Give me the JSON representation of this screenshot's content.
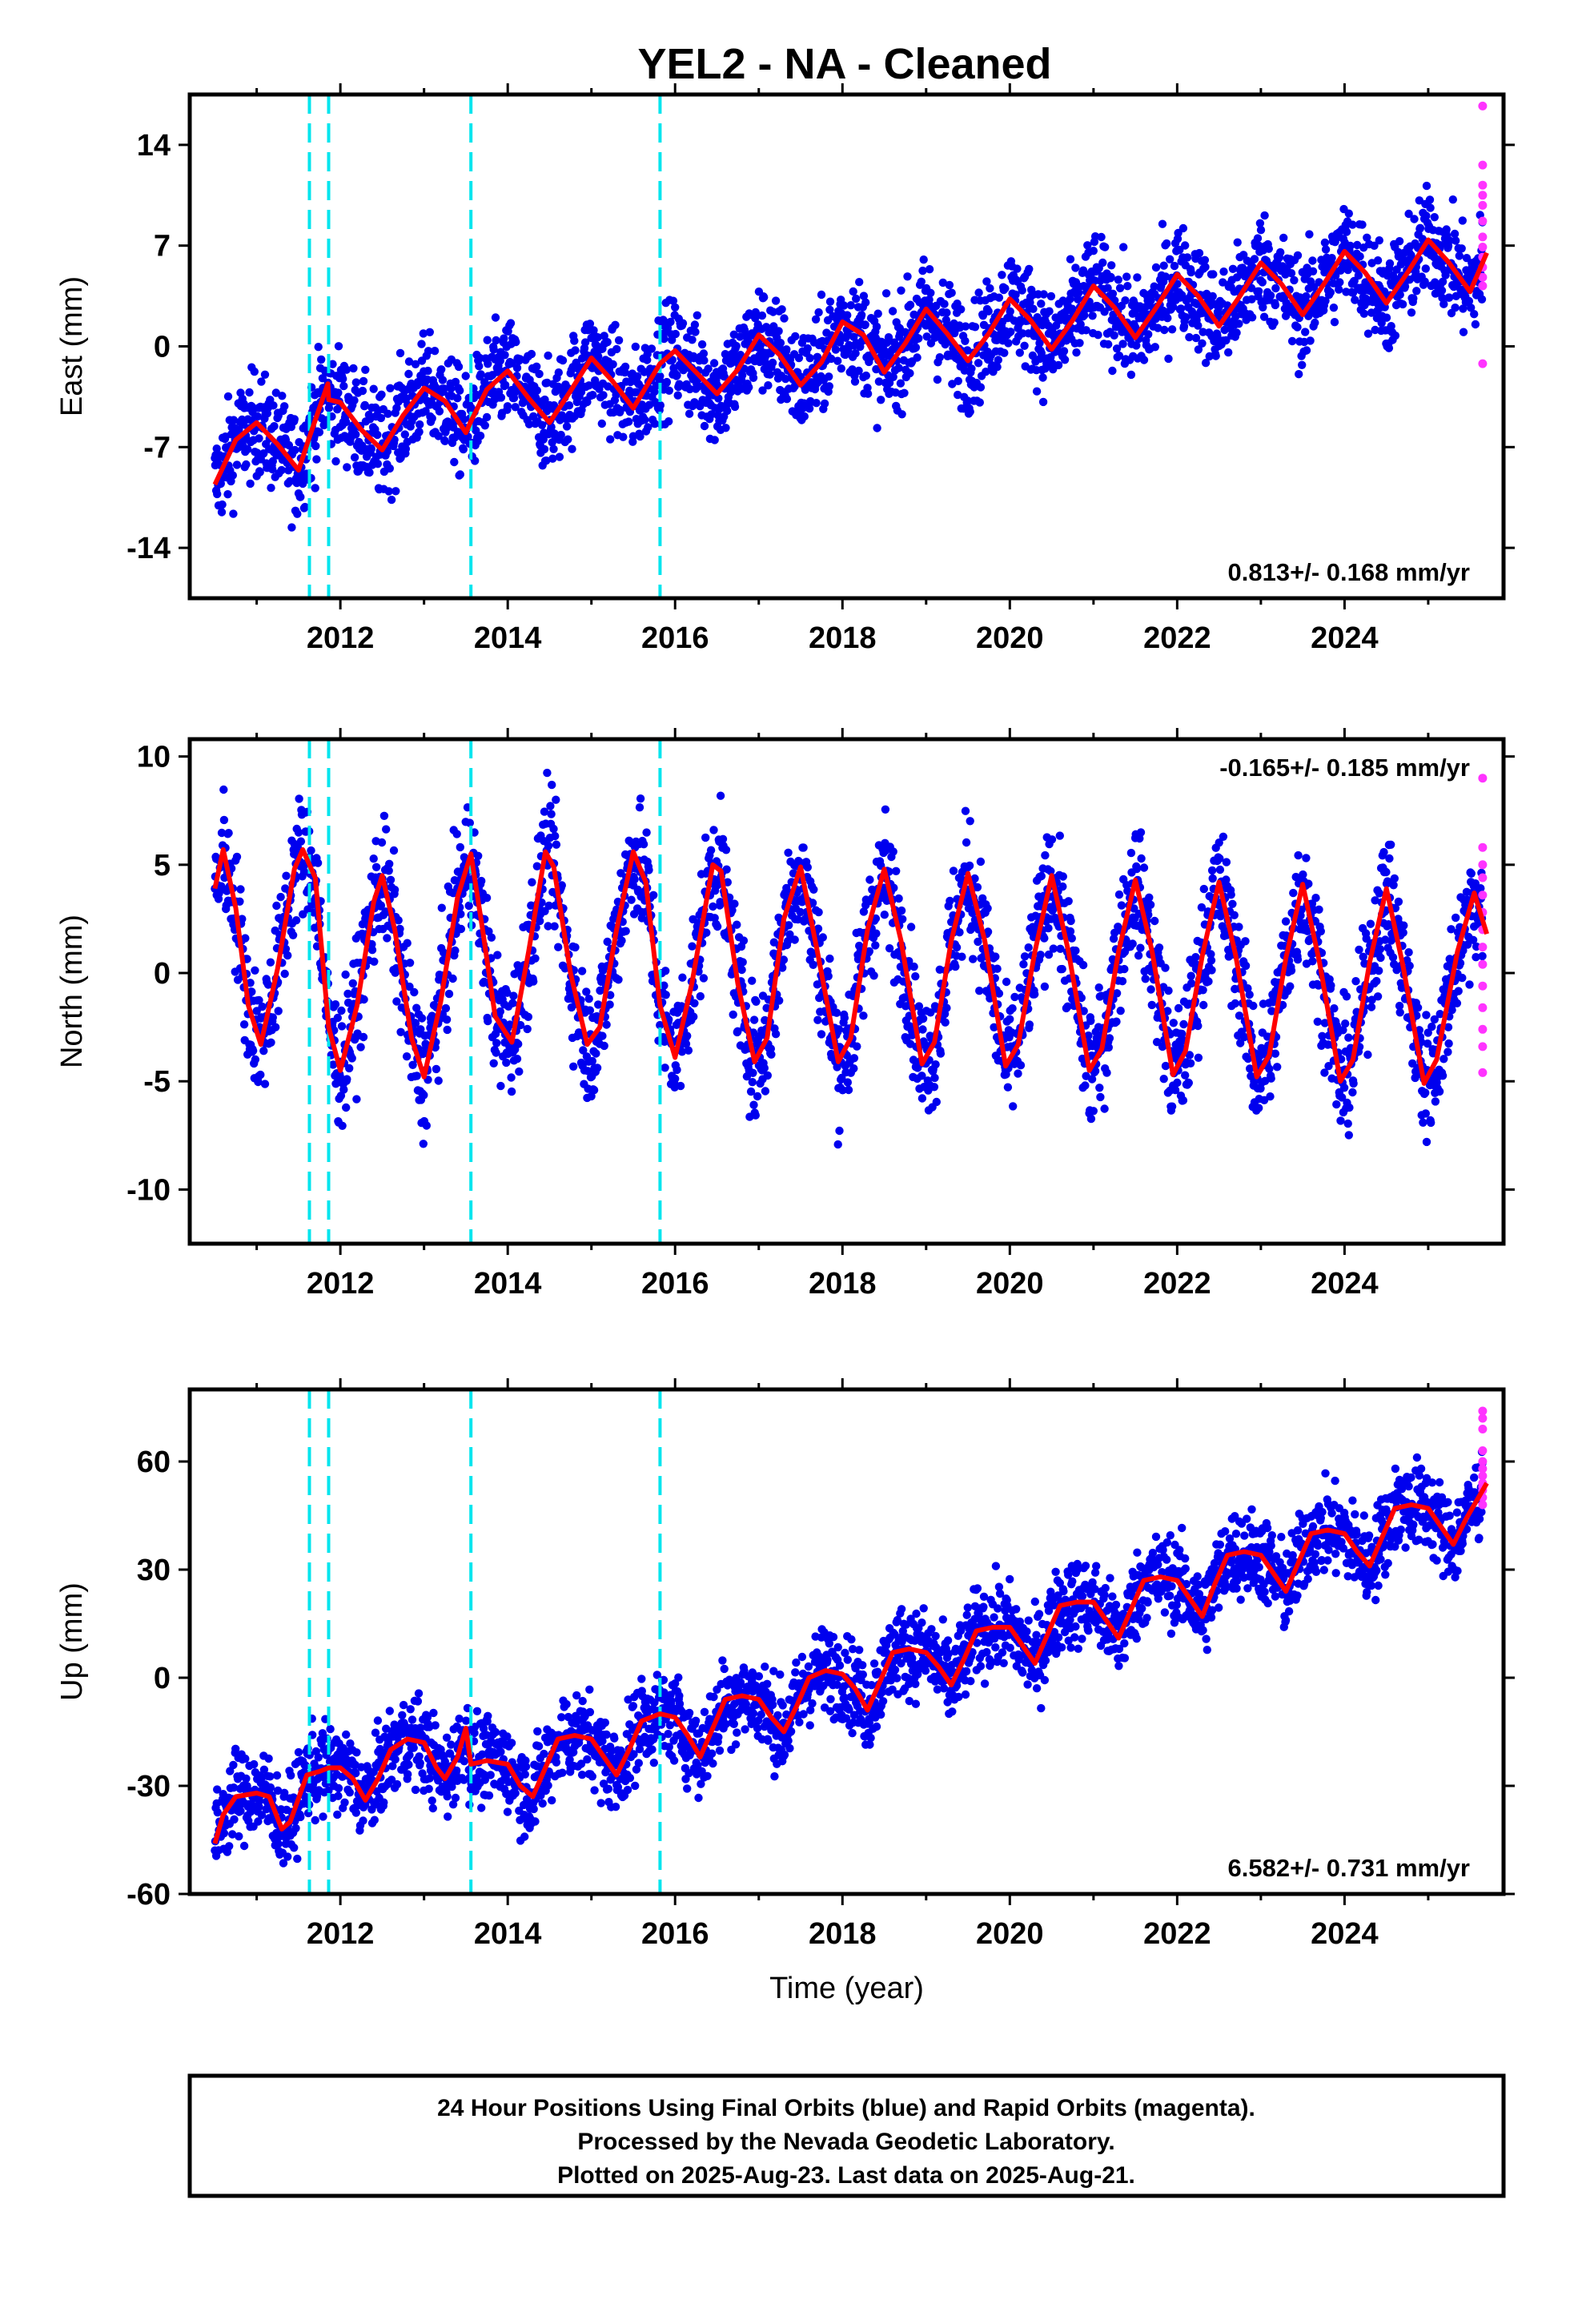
{
  "title": "YEL2  - NA - Cleaned",
  "colors": {
    "final_orbits": "#0000ee",
    "rapid_orbits": "#ff33ff",
    "model": "#ff0000",
    "equipment_change": "#00e5ee",
    "frame": "#000000"
  },
  "chart_data": [
    {
      "type": "scatter",
      "component": "east",
      "ylabel": "East (mm)",
      "xlim": [
        2010.2,
        2025.9
      ],
      "ylim": [
        -17.5,
        17.5
      ],
      "yticks": [
        -14,
        -7,
        0,
        7,
        14
      ],
      "yticklabels": [
        "-14",
        "-7",
        "0",
        "7",
        "14"
      ],
      "xticks": [
        2012,
        2014,
        2016,
        2018,
        2020,
        2022,
        2024
      ],
      "xticklabels": [
        "2012",
        "2014",
        "2016",
        "2018",
        "2020",
        "2022",
        "2024"
      ],
      "rate_label": "0.813+/- 0.168 mm/yr",
      "rate_position": "bottom-right",
      "steps": [
        2011.63,
        2011.86,
        2013.56,
        2015.82
      ],
      "model_points": [
        [
          2010.5,
          -9.6
        ],
        [
          2010.75,
          -6.5
        ],
        [
          2011.0,
          -5.3
        ],
        [
          2011.25,
          -6.8
        ],
        [
          2011.5,
          -8.6
        ],
        [
          2011.63,
          -6.3
        ],
        [
          2011.85,
          -2.6
        ],
        [
          2011.86,
          -3.7
        ],
        [
          2012.0,
          -3.9
        ],
        [
          2012.25,
          -5.8
        ],
        [
          2012.5,
          -7.2
        ],
        [
          2012.75,
          -4.8
        ],
        [
          2013.0,
          -2.9
        ],
        [
          2013.25,
          -3.8
        ],
        [
          2013.5,
          -6.0
        ],
        [
          2013.56,
          -5.2
        ],
        [
          2013.75,
          -3.0
        ],
        [
          2014.0,
          -1.7
        ],
        [
          2014.25,
          -3.6
        ],
        [
          2014.5,
          -5.3
        ],
        [
          2014.75,
          -3.1
        ],
        [
          2015.0,
          -0.8
        ],
        [
          2015.25,
          -2.4
        ],
        [
          2015.5,
          -4.3
        ],
        [
          2015.82,
          -1.2
        ],
        [
          2016.0,
          -0.3
        ],
        [
          2016.25,
          -1.8
        ],
        [
          2016.5,
          -3.3
        ],
        [
          2016.75,
          -1.6
        ],
        [
          2017.0,
          0.8
        ],
        [
          2017.25,
          -0.6
        ],
        [
          2017.5,
          -2.7
        ],
        [
          2017.75,
          -1.1
        ],
        [
          2018.0,
          1.7
        ],
        [
          2018.25,
          0.8
        ],
        [
          2018.5,
          -1.8
        ],
        [
          2018.75,
          0.2
        ],
        [
          2019.0,
          2.6
        ],
        [
          2019.25,
          0.9
        ],
        [
          2019.5,
          -1.0
        ],
        [
          2019.75,
          0.9
        ],
        [
          2020.0,
          3.3
        ],
        [
          2020.25,
          1.8
        ],
        [
          2020.5,
          -0.2
        ],
        [
          2020.75,
          1.8
        ],
        [
          2021.0,
          4.2
        ],
        [
          2021.25,
          2.7
        ],
        [
          2021.5,
          0.6
        ],
        [
          2021.75,
          2.7
        ],
        [
          2022.0,
          5.0
        ],
        [
          2022.25,
          3.5
        ],
        [
          2022.5,
          1.4
        ],
        [
          2022.75,
          3.5
        ],
        [
          2023.0,
          5.8
        ],
        [
          2023.25,
          4.3
        ],
        [
          2023.5,
          2.2
        ],
        [
          2023.75,
          4.3
        ],
        [
          2024.0,
          6.6
        ],
        [
          2024.25,
          5.1
        ],
        [
          2024.5,
          3.0
        ],
        [
          2024.75,
          5.1
        ],
        [
          2025.0,
          7.4
        ],
        [
          2025.25,
          5.8
        ],
        [
          2025.5,
          3.8
        ],
        [
          2025.7,
          6.5
        ]
      ],
      "scatter_spread": 1.8,
      "rapid_x": 2025.65,
      "rapid_values": [
        16.7,
        12.6,
        11.2,
        10.5,
        9.8,
        8.7,
        7.6,
        6.9,
        6.2,
        5.5,
        4.8,
        4.2,
        -1.2
      ]
    },
    {
      "type": "scatter",
      "component": "north",
      "ylabel": "North (mm)",
      "xlim": [
        2010.2,
        2025.9
      ],
      "ylim": [
        -12.5,
        10.8
      ],
      "yticks": [
        -10,
        -5,
        0,
        5,
        10
      ],
      "yticklabels": [
        "-10",
        "-5",
        "0",
        "5",
        "10"
      ],
      "xticks": [
        2012,
        2014,
        2016,
        2018,
        2020,
        2022,
        2024
      ],
      "xticklabels": [
        "2012",
        "2014",
        "2016",
        "2018",
        "2020",
        "2022",
        "2024"
      ],
      "rate_label": "-0.165+/- 0.185 mm/yr",
      "rate_position": "top-right",
      "steps": [
        2011.63,
        2011.86,
        2013.56,
        2015.82
      ],
      "model_points": [
        [
          2010.5,
          3.9
        ],
        [
          2010.6,
          5.7
        ],
        [
          2010.75,
          3.0
        ],
        [
          2010.9,
          -1.5
        ],
        [
          2011.05,
          -3.3
        ],
        [
          2011.25,
          0.2
        ],
        [
          2011.45,
          4.8
        ],
        [
          2011.55,
          5.7
        ],
        [
          2011.7,
          4.4
        ],
        [
          2011.86,
          -2.5
        ],
        [
          2012.0,
          -4.5
        ],
        [
          2012.2,
          -1.5
        ],
        [
          2012.4,
          3.3
        ],
        [
          2012.5,
          4.5
        ],
        [
          2012.65,
          2.0
        ],
        [
          2012.85,
          -3.0
        ],
        [
          2013.0,
          -4.8
        ],
        [
          2013.2,
          -1.3
        ],
        [
          2013.4,
          3.5
        ],
        [
          2013.56,
          5.5
        ],
        [
          2013.7,
          2.0
        ],
        [
          2013.85,
          -2.0
        ],
        [
          2014.05,
          -3.2
        ],
        [
          2014.25,
          1.0
        ],
        [
          2014.45,
          5.6
        ],
        [
          2014.55,
          4.9
        ],
        [
          2014.75,
          0.0
        ],
        [
          2014.95,
          -3.3
        ],
        [
          2015.1,
          -2.5
        ],
        [
          2015.3,
          2.0
        ],
        [
          2015.5,
          5.6
        ],
        [
          2015.65,
          4.2
        ],
        [
          2015.82,
          -1.5
        ],
        [
          2016.0,
          -3.9
        ],
        [
          2016.2,
          -0.5
        ],
        [
          2016.45,
          5.0
        ],
        [
          2016.55,
          4.7
        ],
        [
          2016.75,
          -0.5
        ],
        [
          2016.95,
          -4.1
        ],
        [
          2017.1,
          -3.0
        ],
        [
          2017.3,
          2.5
        ],
        [
          2017.5,
          4.9
        ],
        [
          2017.7,
          1.0
        ],
        [
          2017.95,
          -4.1
        ],
        [
          2018.1,
          -3.0
        ],
        [
          2018.3,
          2.0
        ],
        [
          2018.5,
          4.8
        ],
        [
          2018.7,
          1.5
        ],
        [
          2018.95,
          -4.2
        ],
        [
          2019.1,
          -3.2
        ],
        [
          2019.3,
          1.5
        ],
        [
          2019.5,
          4.6
        ],
        [
          2019.7,
          1.5
        ],
        [
          2019.95,
          -4.3
        ],
        [
          2020.1,
          -3.3
        ],
        [
          2020.3,
          1.0
        ],
        [
          2020.5,
          4.5
        ],
        [
          2020.7,
          1.0
        ],
        [
          2020.95,
          -4.5
        ],
        [
          2021.1,
          -3.5
        ],
        [
          2021.3,
          1.0
        ],
        [
          2021.5,
          4.3
        ],
        [
          2021.7,
          1.0
        ],
        [
          2021.95,
          -4.7
        ],
        [
          2022.1,
          -3.6
        ],
        [
          2022.3,
          0.8
        ],
        [
          2022.5,
          4.2
        ],
        [
          2022.7,
          0.8
        ],
        [
          2022.95,
          -4.8
        ],
        [
          2023.1,
          -3.8
        ],
        [
          2023.3,
          0.7
        ],
        [
          2023.5,
          4.1
        ],
        [
          2023.7,
          0.5
        ],
        [
          2023.95,
          -5.0
        ],
        [
          2024.1,
          -4.0
        ],
        [
          2024.3,
          0.5
        ],
        [
          2024.5,
          3.9
        ],
        [
          2024.7,
          0.3
        ],
        [
          2024.95,
          -5.1
        ],
        [
          2025.1,
          -4.0
        ],
        [
          2025.35,
          1.0
        ],
        [
          2025.55,
          3.7
        ],
        [
          2025.7,
          1.8
        ]
      ],
      "scatter_spread": 1.4,
      "rapid_x": 2025.65,
      "rapid_values": [
        9.0,
        5.8,
        5.0,
        4.4,
        3.6,
        2.8,
        2.0,
        1.2,
        0.4,
        -0.6,
        -1.6,
        -2.6,
        -3.4,
        -4.6
      ]
    },
    {
      "type": "scatter",
      "component": "up",
      "ylabel": "Up (mm)",
      "xlabel": "Time (year)",
      "xlim": [
        2010.2,
        2025.9
      ],
      "ylim": [
        -60,
        80
      ],
      "yticks": [
        -60,
        -30,
        0,
        30,
        60
      ],
      "yticklabels": [
        "-60",
        "-30",
        "0",
        "30",
        "60"
      ],
      "xticks": [
        2012,
        2014,
        2016,
        2018,
        2020,
        2022,
        2024
      ],
      "xticklabels": [
        "2012",
        "2014",
        "2016",
        "2018",
        "2020",
        "2022",
        "2024"
      ],
      "rate_label": "6.582+/- 0.731 mm/yr",
      "rate_position": "bottom-right",
      "steps": [
        2011.63,
        2011.86,
        2013.56,
        2015.82
      ],
      "model_points": [
        [
          2010.5,
          -46
        ],
        [
          2010.6,
          -38
        ],
        [
          2010.75,
          -33
        ],
        [
          2011.0,
          -32
        ],
        [
          2011.15,
          -33
        ],
        [
          2011.3,
          -42
        ],
        [
          2011.4,
          -40
        ],
        [
          2011.6,
          -27
        ],
        [
          2011.75,
          -26
        ],
        [
          2011.86,
          -25
        ],
        [
          2012.0,
          -25
        ],
        [
          2012.15,
          -28
        ],
        [
          2012.3,
          -34
        ],
        [
          2012.45,
          -28
        ],
        [
          2012.6,
          -20
        ],
        [
          2012.8,
          -17
        ],
        [
          2013.0,
          -18
        ],
        [
          2013.15,
          -25
        ],
        [
          2013.25,
          -28
        ],
        [
          2013.4,
          -22
        ],
        [
          2013.5,
          -14
        ],
        [
          2013.56,
          -24
        ],
        [
          2013.75,
          -23
        ],
        [
          2014.0,
          -24
        ],
        [
          2014.15,
          -30
        ],
        [
          2014.3,
          -33
        ],
        [
          2014.45,
          -25
        ],
        [
          2014.6,
          -17
        ],
        [
          2014.8,
          -16
        ],
        [
          2015.0,
          -17
        ],
        [
          2015.15,
          -22
        ],
        [
          2015.3,
          -27
        ],
        [
          2015.45,
          -20
        ],
        [
          2015.6,
          -12
        ],
        [
          2015.82,
          -10
        ],
        [
          2016.0,
          -11
        ],
        [
          2016.15,
          -16
        ],
        [
          2016.3,
          -22
        ],
        [
          2016.45,
          -14
        ],
        [
          2016.6,
          -6
        ],
        [
          2016.8,
          -5
        ],
        [
          2017.0,
          -6
        ],
        [
          2017.15,
          -11
        ],
        [
          2017.3,
          -15
        ],
        [
          2017.45,
          -8
        ],
        [
          2017.6,
          0
        ],
        [
          2017.8,
          2
        ],
        [
          2018.0,
          1
        ],
        [
          2018.15,
          -3
        ],
        [
          2018.3,
          -9
        ],
        [
          2018.45,
          -1
        ],
        [
          2018.6,
          7
        ],
        [
          2018.8,
          8
        ],
        [
          2019.0,
          7
        ],
        [
          2019.15,
          3
        ],
        [
          2019.3,
          -2
        ],
        [
          2019.45,
          5
        ],
        [
          2019.6,
          13
        ],
        [
          2019.8,
          14
        ],
        [
          2020.0,
          14
        ],
        [
          2020.15,
          9
        ],
        [
          2020.3,
          4
        ],
        [
          2020.45,
          12
        ],
        [
          2020.6,
          20
        ],
        [
          2020.8,
          21
        ],
        [
          2021.0,
          21
        ],
        [
          2021.15,
          16
        ],
        [
          2021.3,
          11
        ],
        [
          2021.45,
          19
        ],
        [
          2021.6,
          27
        ],
        [
          2021.8,
          28
        ],
        [
          2022.0,
          27
        ],
        [
          2022.15,
          22
        ],
        [
          2022.3,
          17
        ],
        [
          2022.45,
          26
        ],
        [
          2022.6,
          34
        ],
        [
          2022.8,
          35
        ],
        [
          2023.0,
          34
        ],
        [
          2023.15,
          29
        ],
        [
          2023.3,
          24
        ],
        [
          2023.45,
          32
        ],
        [
          2023.6,
          40
        ],
        [
          2023.8,
          41
        ],
        [
          2024.0,
          40
        ],
        [
          2024.15,
          35
        ],
        [
          2024.3,
          31
        ],
        [
          2024.45,
          39
        ],
        [
          2024.6,
          47
        ],
        [
          2024.8,
          48
        ],
        [
          2025.0,
          47
        ],
        [
          2025.15,
          42
        ],
        [
          2025.3,
          37
        ],
        [
          2025.45,
          44
        ],
        [
          2025.7,
          54
        ]
      ],
      "scatter_spread": 6.0,
      "rapid_x": 2025.65,
      "rapid_values": [
        74,
        72,
        69,
        63,
        60,
        58,
        56,
        54,
        53,
        52,
        50,
        48
      ]
    }
  ],
  "footer": {
    "line1": "24 Hour Positions Using Final Orbits (blue) and Rapid Orbits (magenta).",
    "line2": "Processed by the Nevada Geodetic Laboratory.",
    "line3": "Plotted on 2025-Aug-23. Last data on 2025-Aug-21."
  }
}
